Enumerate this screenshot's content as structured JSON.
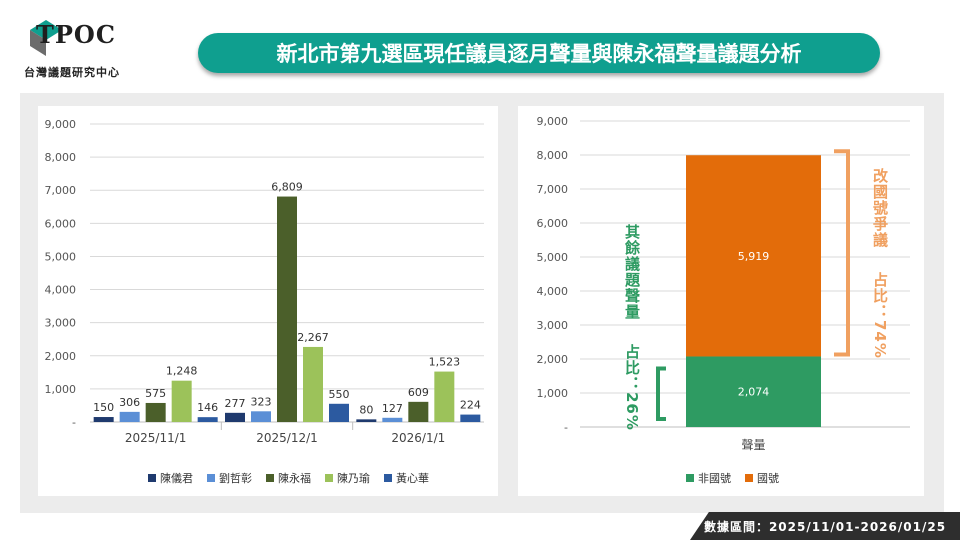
{
  "header": {
    "logo_text": "TPOC",
    "logo_subtitle": "台灣議題研究中心",
    "title": "新北市第九選區現任議員逐月聲量與陳永福聲量議題分析"
  },
  "footer": {
    "date_range": "數據區間：2025/11/01-2026/01/25"
  },
  "colors": {
    "title_bar": "#0f9f8f",
    "series": [
      "#1f3a6e",
      "#5b8fd6",
      "#4b5f2a",
      "#9cc25a",
      "#2c5aa0"
    ],
    "non_national": "#2e9b62",
    "national": "#e36c0a",
    "bracket_orange": "#f0a060",
    "bracket_green": "#2e9b62"
  },
  "annotations": {
    "other_topics": "其餘議題聲量",
    "other_share": "占比：26%",
    "national_dispute": "改國號爭議",
    "national_share": "占比：74%"
  },
  "chart_data": [
    {
      "type": "bar",
      "categories": [
        "2025/11/1",
        "2025/12/1",
        "2026/1/1"
      ],
      "series": [
        {
          "name": "陳儀君",
          "values": [
            150,
            277,
            80
          ]
        },
        {
          "name": "劉哲彰",
          "values": [
            306,
            323,
            127
          ]
        },
        {
          "name": "陳永福",
          "values": [
            575,
            6809,
            609
          ]
        },
        {
          "name": "陳乃瑜",
          "values": [
            1248,
            2267,
            1523
          ]
        },
        {
          "name": "黃心華",
          "values": [
            146,
            550,
            224
          ]
        }
      ],
      "value_labels": [
        [
          "150",
          "277",
          "80"
        ],
        [
          "306",
          "323",
          "127"
        ],
        [
          "575",
          "6,809",
          "609"
        ],
        [
          "1,248",
          "2,267",
          "1,523"
        ],
        [
          "146",
          "550",
          "224"
        ]
      ],
      "yticks": [
        "-",
        "1,000",
        "2,000",
        "3,000",
        "4,000",
        "5,000",
        "6,000",
        "7,000",
        "8,000",
        "9,000"
      ],
      "ylim": [
        0,
        9000
      ],
      "grid": true,
      "legend": "bottom"
    },
    {
      "type": "bar",
      "stacked": true,
      "categories": [
        "聲量"
      ],
      "series": [
        {
          "name": "非國號",
          "values": [
            2074
          ]
        },
        {
          "name": "國號",
          "values": [
            5919
          ]
        }
      ],
      "value_labels": [
        "2,074",
        "5,919"
      ],
      "yticks": [
        "-",
        "1,000",
        "2,000",
        "3,000",
        "4,000",
        "5,000",
        "6,000",
        "7,000",
        "8,000",
        "9,000"
      ],
      "ylim": [
        0,
        9000
      ],
      "grid": true,
      "legend": "bottom"
    }
  ]
}
